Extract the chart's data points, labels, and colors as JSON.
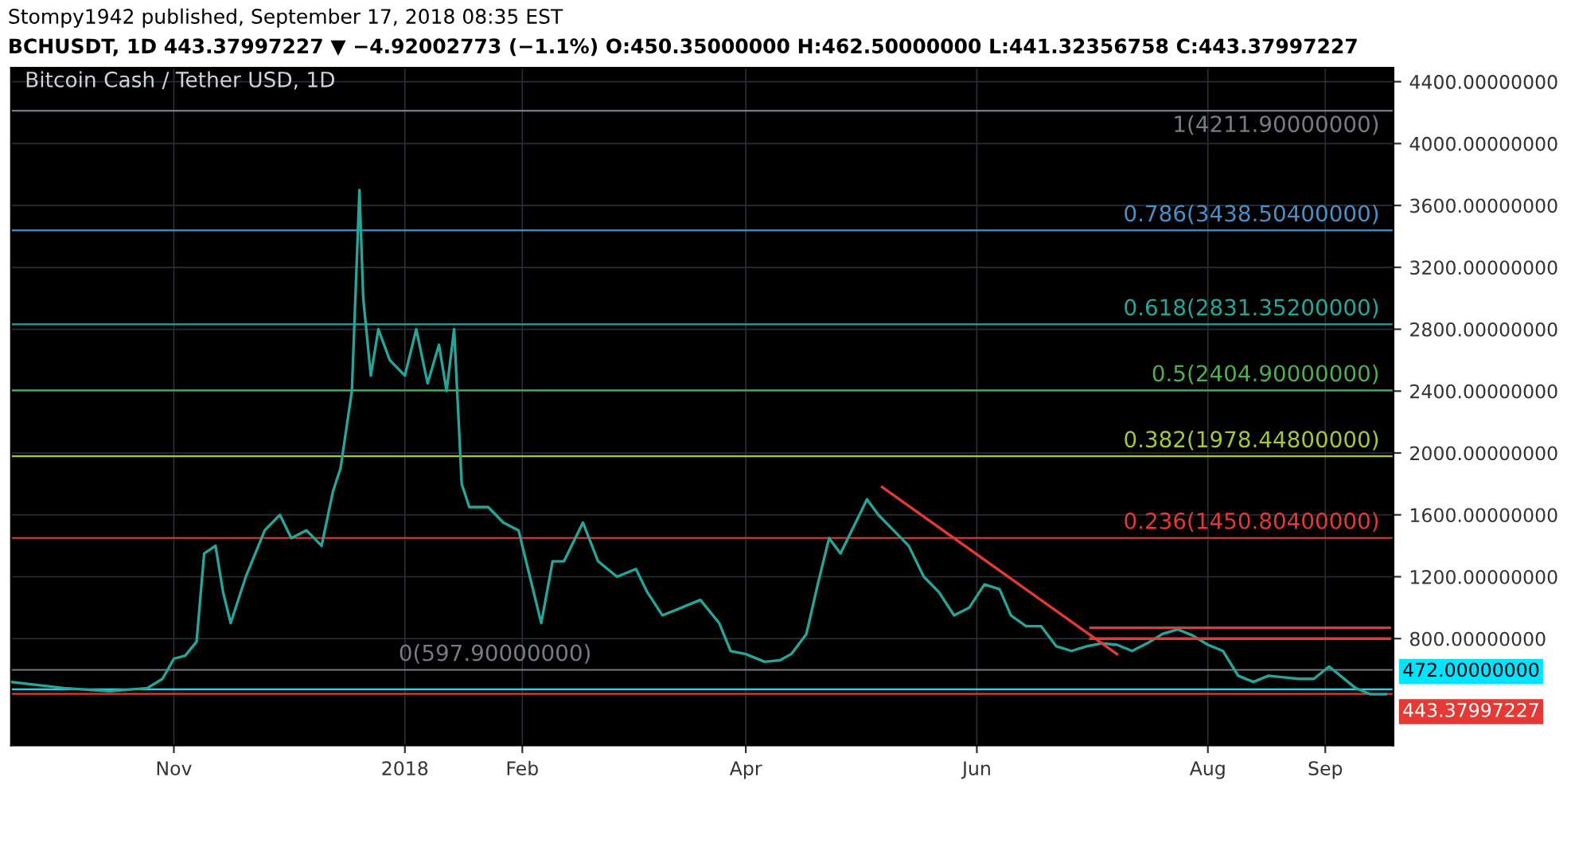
{
  "chart_data": {
    "type": "line",
    "title": "Bitcoin Cash / Tether USD, 1D",
    "annotations": [
      "Stompy1942 published, September 17, 2018 08:35 EST",
      "BCHUSDT, 1D 443.37997227 ▼ −4.92002773 (−1.1%) O:450.35000000 H:462.50000000 L:441.32356758 C:443.37997227"
    ],
    "xlim": [
      "2017-09-19",
      "2018-09-19"
    ],
    "xticks": [
      {
        "value": "2017-11-01",
        "label": "Nov"
      },
      {
        "value": "2018-01-01",
        "label": "2018"
      },
      {
        "value": "2018-02-01",
        "label": "Feb"
      },
      {
        "value": "2018-04-01",
        "label": "Apr"
      },
      {
        "value": "2018-06-01",
        "label": "Jun"
      },
      {
        "value": "2018-08-01",
        "label": "Aug"
      },
      {
        "value": "2018-09-01",
        "label": "Sep"
      }
    ],
    "ylim": [
      110,
      4490
    ],
    "yticks": [
      {
        "value": 800,
        "label": "800.00000000"
      },
      {
        "value": 1200,
        "label": "1200.00000000"
      },
      {
        "value": 1600,
        "label": "1600.00000000"
      },
      {
        "value": 2000,
        "label": "2000.00000000"
      },
      {
        "value": 2400,
        "label": "2400.00000000"
      },
      {
        "value": 2800,
        "label": "2800.00000000"
      },
      {
        "value": 3200,
        "label": "3200.00000000"
      },
      {
        "value": 3600,
        "label": "3600.00000000"
      },
      {
        "value": 4000,
        "label": "4000.00000000"
      },
      {
        "value": 4400,
        "label": "4400.00000000"
      }
    ],
    "grid": true,
    "series": [
      {
        "color": "#26a69a",
        "x": [
          "2017-09-19",
          "2017-10-03",
          "2017-10-15",
          "2017-10-25",
          "2017-10-29",
          "2017-11-01",
          "2017-11-04",
          "2017-11-07",
          "2017-11-09",
          "2017-11-12",
          "2017-11-14",
          "2017-11-16",
          "2017-11-20",
          "2017-11-25",
          "2017-11-29",
          "2017-12-02",
          "2017-12-06",
          "2017-12-10",
          "2017-12-13",
          "2017-12-15",
          "2017-12-18",
          "2017-12-20",
          "2017-12-21",
          "2017-12-23",
          "2017-12-25",
          "2017-12-28",
          "2018-01-01",
          "2018-01-04",
          "2018-01-07",
          "2018-01-10",
          "2018-01-12",
          "2018-01-14",
          "2018-01-16",
          "2018-01-18",
          "2018-01-20",
          "2018-01-23",
          "2018-01-27",
          "2018-01-31",
          "2018-02-03",
          "2018-02-06",
          "2018-02-09",
          "2018-02-12",
          "2018-02-17",
          "2018-02-21",
          "2018-02-26",
          "2018-03-03",
          "2018-03-06",
          "2018-03-10",
          "2018-03-15",
          "2018-03-20",
          "2018-03-25",
          "2018-03-28",
          "2018-04-01",
          "2018-04-06",
          "2018-04-10",
          "2018-04-13",
          "2018-04-17",
          "2018-04-20",
          "2018-04-23",
          "2018-04-26",
          "2018-04-30",
          "2018-05-03",
          "2018-05-06",
          "2018-05-10",
          "2018-05-14",
          "2018-05-18",
          "2018-05-22",
          "2018-05-26",
          "2018-05-30",
          "2018-06-03",
          "2018-06-07",
          "2018-06-10",
          "2018-06-14",
          "2018-06-18",
          "2018-06-22",
          "2018-06-26",
          "2018-06-30",
          "2018-07-04",
          "2018-07-08",
          "2018-07-12",
          "2018-07-16",
          "2018-07-20",
          "2018-07-24",
          "2018-07-28",
          "2018-08-01",
          "2018-08-05",
          "2018-08-09",
          "2018-08-13",
          "2018-08-17",
          "2018-08-21",
          "2018-08-25",
          "2018-08-29",
          "2018-09-02",
          "2018-09-05",
          "2018-09-09",
          "2018-09-13",
          "2018-09-17"
        ],
        "values": [
          520,
          480,
          460,
          480,
          540,
          670,
          690,
          780,
          1350,
          1400,
          1100,
          900,
          1200,
          1500,
          1600,
          1450,
          1500,
          1400,
          1750,
          1900,
          2400,
          3700,
          3000,
          2500,
          2800,
          2600,
          2500,
          2800,
          2450,
          2700,
          2400,
          2800,
          1800,
          1650,
          1650,
          1650,
          1550,
          1500,
          1200,
          900,
          1300,
          1300,
          1550,
          1300,
          1200,
          1250,
          1100,
          950,
          1000,
          1050,
          900,
          720,
          700,
          650,
          660,
          700,
          830,
          1150,
          1450,
          1350,
          1550,
          1700,
          1600,
          1500,
          1400,
          1200,
          1100,
          950,
          1000,
          1150,
          1120,
          950,
          880,
          880,
          750,
          720,
          750,
          770,
          760,
          720,
          770,
          830,
          860,
          820,
          760,
          720,
          560,
          520,
          560,
          550,
          540,
          540,
          620,
          560,
          480,
          440,
          440
        ]
      },
      {
        "color": "#e53935",
        "x": [
          "2018-05-07",
          "2018-07-08"
        ],
        "values": [
          1780,
          700
        ]
      },
      {
        "color": "#e53935",
        "x": [
          "2018-07-01",
          "2018-09-18"
        ],
        "values": [
          870,
          870
        ]
      },
      {
        "color": "#e53935",
        "x": [
          "2018-07-01",
          "2018-09-18"
        ],
        "values": [
          800,
          800
        ]
      }
    ],
    "ref_lines": [
      {
        "axis": "y",
        "value": 4211.9,
        "label": "1(4211.90000000)",
        "color": "#787b86"
      },
      {
        "axis": "y",
        "value": 3438.504,
        "label": "0.786(3438.50400000)",
        "color": "#4a90c8"
      },
      {
        "axis": "y",
        "value": 2831.352,
        "label": "0.618(2831.35200000)",
        "color": "#26a69a"
      },
      {
        "axis": "y",
        "value": 2404.9,
        "label": "0.5(2404.90000000)",
        "color": "#4caf50"
      },
      {
        "axis": "y",
        "value": 1978.448,
        "label": "0.382(1978.44800000)",
        "color": "#a4c93a"
      },
      {
        "axis": "y",
        "value": 1450.804,
        "label": "0.236(1450.80400000)",
        "color": "#e53935"
      },
      {
        "axis": "y",
        "value": 597.9,
        "label": "0(597.90000000)",
        "color": "#787b86"
      },
      {
        "axis": "y",
        "value": 472,
        "label": "472.00000000",
        "color": "#00e5ff"
      },
      {
        "axis": "y",
        "value": 443.37997227,
        "label": "443.37997227",
        "color": "#e53935"
      }
    ]
  }
}
